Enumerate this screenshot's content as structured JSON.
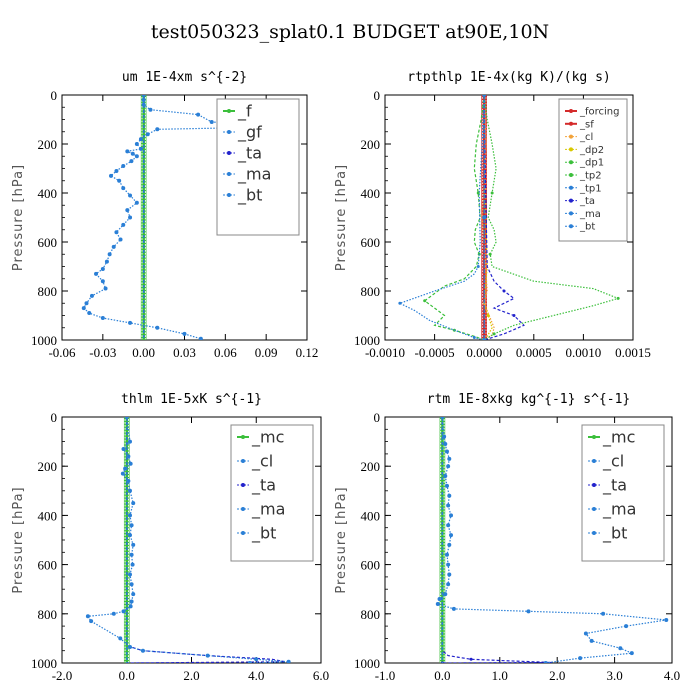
{
  "figure": {
    "title": "test050323_splat0.1  BUDGET at90E,10N"
  },
  "colors": {
    "blue": "#2a7fd6",
    "green": "#3bbf3b",
    "red": "#d42a2a",
    "orange": "#f2a23a",
    "yellow": "#d8c800",
    "navy": "#2222cc",
    "cyan": "#22dddd"
  },
  "chart_data": [
    {
      "type": "line",
      "title": "um  1E-4xm s^{-2}",
      "ylabel": "Pressure [hPa]",
      "xlabel": "",
      "xlim": [
        -0.06,
        0.12
      ],
      "ylim": [
        1000,
        0
      ],
      "xticks": [
        -0.06,
        -0.03,
        0.0,
        0.03,
        0.06,
        0.09,
        0.12
      ],
      "xtick_labels": [
        "-0.06",
        "-0.03",
        "0.00",
        "0.03",
        "0.06",
        "0.09",
        "0.12"
      ],
      "yticks": [
        0,
        200,
        400,
        600,
        800,
        1000
      ],
      "ytick_labels": [
        "0",
        "200",
        "400",
        "600",
        "800",
        "1000"
      ],
      "legend": {
        "position": "top-right",
        "font_size": 16
      },
      "series": [
        {
          "name": "_f",
          "color": "#3bbf3b",
          "style": "solid",
          "width": 2.5,
          "x": [
            0,
            0,
            0
          ],
          "y": [
            0,
            500,
            1000
          ]
        },
        {
          "name": "_gf",
          "color": "#2a7fd6",
          "style": "dashed",
          "x": [
            0,
            0,
            0
          ],
          "y": [
            0,
            500,
            1000
          ]
        },
        {
          "name": "_ta",
          "color": "#2222cc",
          "style": "dashed",
          "x": [
            0,
            0,
            0
          ],
          "y": [
            0,
            500,
            1000
          ]
        },
        {
          "name": "_ma",
          "color": "#2a7fd6",
          "style": "dashed",
          "x": [
            0,
            0,
            0
          ],
          "y": [
            0,
            500,
            1000
          ]
        },
        {
          "name": "_bt",
          "color": "#2a7fd6",
          "style": "dotted",
          "marker": true,
          "x": [
            0,
            0,
            0,
            0.005,
            0.04,
            0.05,
            0.106,
            0.01,
            0.003,
            -0.002,
            -0.005,
            -0.002,
            -0.012,
            -0.008,
            -0.005,
            -0.009,
            -0.015,
            -0.02,
            -0.024,
            -0.018,
            -0.015,
            -0.01,
            -0.005,
            -0.012,
            -0.01,
            -0.015,
            -0.02,
            -0.017,
            -0.022,
            -0.025,
            -0.027,
            -0.03,
            -0.035,
            -0.03,
            -0.028,
            -0.038,
            -0.042,
            -0.044,
            -0.04,
            -0.03,
            -0.01,
            0.01,
            0.03,
            0.042
          ],
          "y": [
            0,
            20,
            40,
            60,
            80,
            110,
            130,
            140,
            160,
            180,
            200,
            220,
            230,
            240,
            250,
            270,
            290,
            310,
            330,
            350,
            380,
            410,
            440,
            470,
            500,
            530,
            560,
            590,
            620,
            650,
            680,
            710,
            730,
            760,
            790,
            820,
            850,
            870,
            890,
            910,
            930,
            950,
            975,
            995
          ]
        }
      ]
    },
    {
      "type": "line",
      "title": "rtpthlp  1E-4x(kg K)/(kg s)",
      "ylabel": "Pressure [hPa]",
      "xlabel": "",
      "xlim": [
        -0.001,
        0.0015
      ],
      "ylim": [
        1000,
        0
      ],
      "xticks": [
        -0.001,
        -0.0005,
        0.0,
        0.0005,
        0.001,
        0.0015
      ],
      "xtick_labels": [
        "-0.0010",
        "-0.0005",
        "0.0000",
        "0.0005",
        "0.0010",
        "0.0015"
      ],
      "yticks": [
        0,
        200,
        400,
        600,
        800,
        1000
      ],
      "ytick_labels": [
        "0",
        "200",
        "400",
        "600",
        "800",
        "1000"
      ],
      "legend": {
        "position": "top-right",
        "font_size": 10
      },
      "series": [
        {
          "name": "_forcing",
          "color": "#d42a2a",
          "style": "solid",
          "width": 2,
          "x": [
            0,
            0,
            0
          ],
          "y": [
            0,
            500,
            1000
          ]
        },
        {
          "name": "_sf",
          "color": "#d42a2a",
          "style": "solid",
          "width": 3,
          "x": [
            0,
            0,
            0
          ],
          "y": [
            0,
            500,
            1000
          ]
        },
        {
          "name": "_cl",
          "color": "#f2a23a",
          "style": "dotted",
          "x": [
            0,
            2e-05,
            -2e-05,
            3e-05,
            0,
            5e-05,
            0.0001,
            8e-05,
            0
          ],
          "y": [
            0,
            200,
            500,
            800,
            850,
            900,
            950,
            980,
            1000
          ]
        },
        {
          "name": "_dp2",
          "color": "#d8c800",
          "style": "dotted",
          "x": [
            0,
            0,
            3e-05,
            0,
            4e-05,
            8e-05,
            3e-05,
            0
          ],
          "y": [
            0,
            300,
            700,
            850,
            900,
            950,
            985,
            1000
          ]
        },
        {
          "name": "_dp1",
          "color": "#3bbf3b",
          "style": "dotted",
          "x": [
            0,
            3e-05,
            8e-05,
            0.00012,
            8e-05,
            4e-05,
            0.0001,
            0.00012,
            6e-05,
            8e-05,
            0.0005,
            0.0011,
            0.00135,
            0.0011,
            0.0007,
            0.0003,
            0.0001,
            0
          ],
          "y": [
            0,
            100,
            200,
            300,
            400,
            500,
            550,
            600,
            650,
            700,
            760,
            790,
            830,
            860,
            900,
            940,
            975,
            1000
          ]
        },
        {
          "name": "_tp2",
          "color": "#3bbf3b",
          "style": "dashed",
          "x": [
            0,
            -3e-05,
            -8e-05,
            -0.0001,
            -6e-05,
            -4e-05,
            -9e-05,
            -0.0001,
            -5e-05,
            -8e-05,
            -0.0002,
            -0.0004,
            -0.0006,
            -0.0005,
            -0.0004,
            -0.0005,
            -0.0003,
            -0.0001,
            0
          ],
          "y": [
            0,
            100,
            200,
            300,
            400,
            500,
            550,
            600,
            650,
            700,
            750,
            780,
            840,
            870,
            900,
            940,
            960,
            985,
            1000
          ]
        },
        {
          "name": "_tp1",
          "color": "#2a7fd6",
          "style": "dotted",
          "x": [
            0,
            -2e-05,
            -5e-05,
            -4e-05,
            -6e-05,
            -0.0001,
            -0.0002,
            -0.0005,
            -0.00085,
            -0.0007,
            -0.00055,
            -0.0003,
            -0.0001,
            0
          ],
          "y": [
            0,
            200,
            400,
            600,
            700,
            730,
            760,
            800,
            850,
            880,
            920,
            960,
            990,
            1000
          ]
        },
        {
          "name": "_ta",
          "color": "#2222cc",
          "style": "dashed",
          "x": [
            0,
            1e-05,
            3e-05,
            0.0001,
            0.0002,
            0.0003,
            0.0002,
            0.0001,
            0.0003,
            0.0004,
            0.0002,
            0
          ],
          "y": [
            0,
            300,
            700,
            760,
            800,
            830,
            850,
            870,
            900,
            940,
            975,
            1000
          ]
        },
        {
          "name": "_ma",
          "color": "#2a7fd6",
          "style": "dashed",
          "x": [
            0,
            0,
            0
          ],
          "y": [
            0,
            500,
            1000
          ]
        },
        {
          "name": "_bt",
          "color": "#2a7fd6",
          "style": "dotted",
          "marker": true,
          "x": [
            0,
            0,
            0
          ],
          "y": [
            0,
            500,
            1000
          ]
        }
      ]
    },
    {
      "type": "line",
      "title": "thlm  1E-5xK s^{-1}",
      "ylabel": "Pressure [hPa]",
      "xlabel": "",
      "xlim": [
        -2.0,
        6.0
      ],
      "ylim": [
        1000,
        0
      ],
      "xticks": [
        -2.0,
        0.0,
        2.0,
        4.0,
        6.0
      ],
      "xtick_labels": [
        "-2.0",
        "0.0",
        "2.0",
        "4.0",
        "6.0"
      ],
      "yticks": [
        0,
        200,
        400,
        600,
        800,
        1000
      ],
      "ytick_labels": [
        "0",
        "200",
        "400",
        "600",
        "800",
        "1000"
      ],
      "legend": {
        "position": "top-right",
        "font_size": 16
      },
      "series": [
        {
          "name": "_mc",
          "color": "#3bbf3b",
          "style": "solid",
          "width": 2.5,
          "x": [
            0,
            0,
            0
          ],
          "y": [
            0,
            500,
            1000
          ]
        },
        {
          "name": "_cl",
          "color": "#2a7fd6",
          "style": "dashed",
          "x": [
            0,
            0,
            0
          ],
          "y": [
            0,
            500,
            1000
          ]
        },
        {
          "name": "_ta",
          "color": "#2222cc",
          "style": "dashed",
          "x": [
            0,
            0,
            0,
            0.5,
            2.5,
            4.5,
            4.9,
            0
          ],
          "y": [
            0,
            800,
            930,
            950,
            970,
            985,
            995,
            1000
          ]
        },
        {
          "name": "_ma",
          "color": "#2a7fd6",
          "style": "dashed",
          "x": [
            0,
            0,
            0
          ],
          "y": [
            0,
            500,
            1000
          ]
        },
        {
          "name": "_bt",
          "color": "#2a7fd6",
          "style": "dotted",
          "marker": true,
          "x": [
            0,
            0.1,
            -0.1,
            0.05,
            0.12,
            -0.05,
            -0.12,
            0.05,
            0.1,
            0.2,
            0.1,
            0.15,
            0.1,
            0.2,
            0.15,
            0.18,
            0.1,
            0.15,
            0.2,
            0.15,
            0.12,
            -0.1,
            -0.4,
            -1.2,
            -1.1,
            -0.2,
            0.1,
            0.5,
            2.5,
            4.0,
            5.0,
            3.8
          ],
          "y": [
            0,
            100,
            130,
            160,
            190,
            210,
            230,
            260,
            300,
            350,
            400,
            440,
            480,
            520,
            560,
            600,
            640,
            680,
            720,
            750,
            770,
            790,
            800,
            810,
            830,
            900,
            935,
            950,
            970,
            985,
            995,
            1000
          ]
        }
      ]
    },
    {
      "type": "line",
      "title": "rtm  1E-8xkg kg^{-1} s^{-1}",
      "ylabel": "Pressure [hPa]",
      "xlabel": "",
      "xlim": [
        -1.0,
        4.0
      ],
      "ylim": [
        1000,
        0
      ],
      "xticks": [
        -1.0,
        0.0,
        1.0,
        2.0,
        3.0,
        4.0
      ],
      "xtick_labels": [
        "-1.0",
        "0.0",
        "1.0",
        "2.0",
        "3.0",
        "4.0"
      ],
      "yticks": [
        0,
        200,
        400,
        600,
        800,
        1000
      ],
      "ytick_labels": [
        "0",
        "200",
        "400",
        "600",
        "800",
        "1000"
      ],
      "legend": {
        "position": "top-right",
        "font_size": 16
      },
      "series": [
        {
          "name": "_mc",
          "color": "#3bbf3b",
          "style": "solid",
          "width": 2.5,
          "x": [
            0,
            0,
            0
          ],
          "y": [
            0,
            500,
            1000
          ]
        },
        {
          "name": "_cl",
          "color": "#2a7fd6",
          "style": "dashed",
          "x": [
            0,
            0,
            0
          ],
          "y": [
            0,
            500,
            1000
          ]
        },
        {
          "name": "_ta",
          "color": "#2222cc",
          "style": "dashed",
          "x": [
            0,
            0,
            0,
            0.1,
            0.5,
            1.0,
            1.6,
            1.9,
            0
          ],
          "y": [
            0,
            900,
            950,
            970,
            985,
            990,
            995,
            998,
            1000
          ]
        },
        {
          "name": "_ma",
          "color": "#2a7fd6",
          "style": "dashed",
          "x": [
            0,
            0,
            0
          ],
          "y": [
            0,
            500,
            1000
          ]
        },
        {
          "name": "_bt",
          "color": "#2a7fd6",
          "style": "dotted",
          "marker": true,
          "x": [
            0,
            0.03,
            0.05,
            0.08,
            0.12,
            0.1,
            0.05,
            0.08,
            0.12,
            0.1,
            0.15,
            0.1,
            0.15,
            0.12,
            0.08,
            0.1,
            0.12,
            0.1,
            0.05,
            -0.05,
            -0.08,
            0.2,
            1.5,
            2.8,
            3.9,
            3.2,
            2.5,
            2.6,
            3.1,
            3.3,
            2.4,
            1.8
          ],
          "y": [
            0,
            80,
            110,
            140,
            170,
            200,
            240,
            280,
            320,
            360,
            400,
            440,
            480,
            520,
            560,
            600,
            640,
            680,
            720,
            740,
            760,
            780,
            790,
            800,
            825,
            850,
            880,
            910,
            940,
            960,
            980,
            1000
          ]
        }
      ]
    }
  ]
}
